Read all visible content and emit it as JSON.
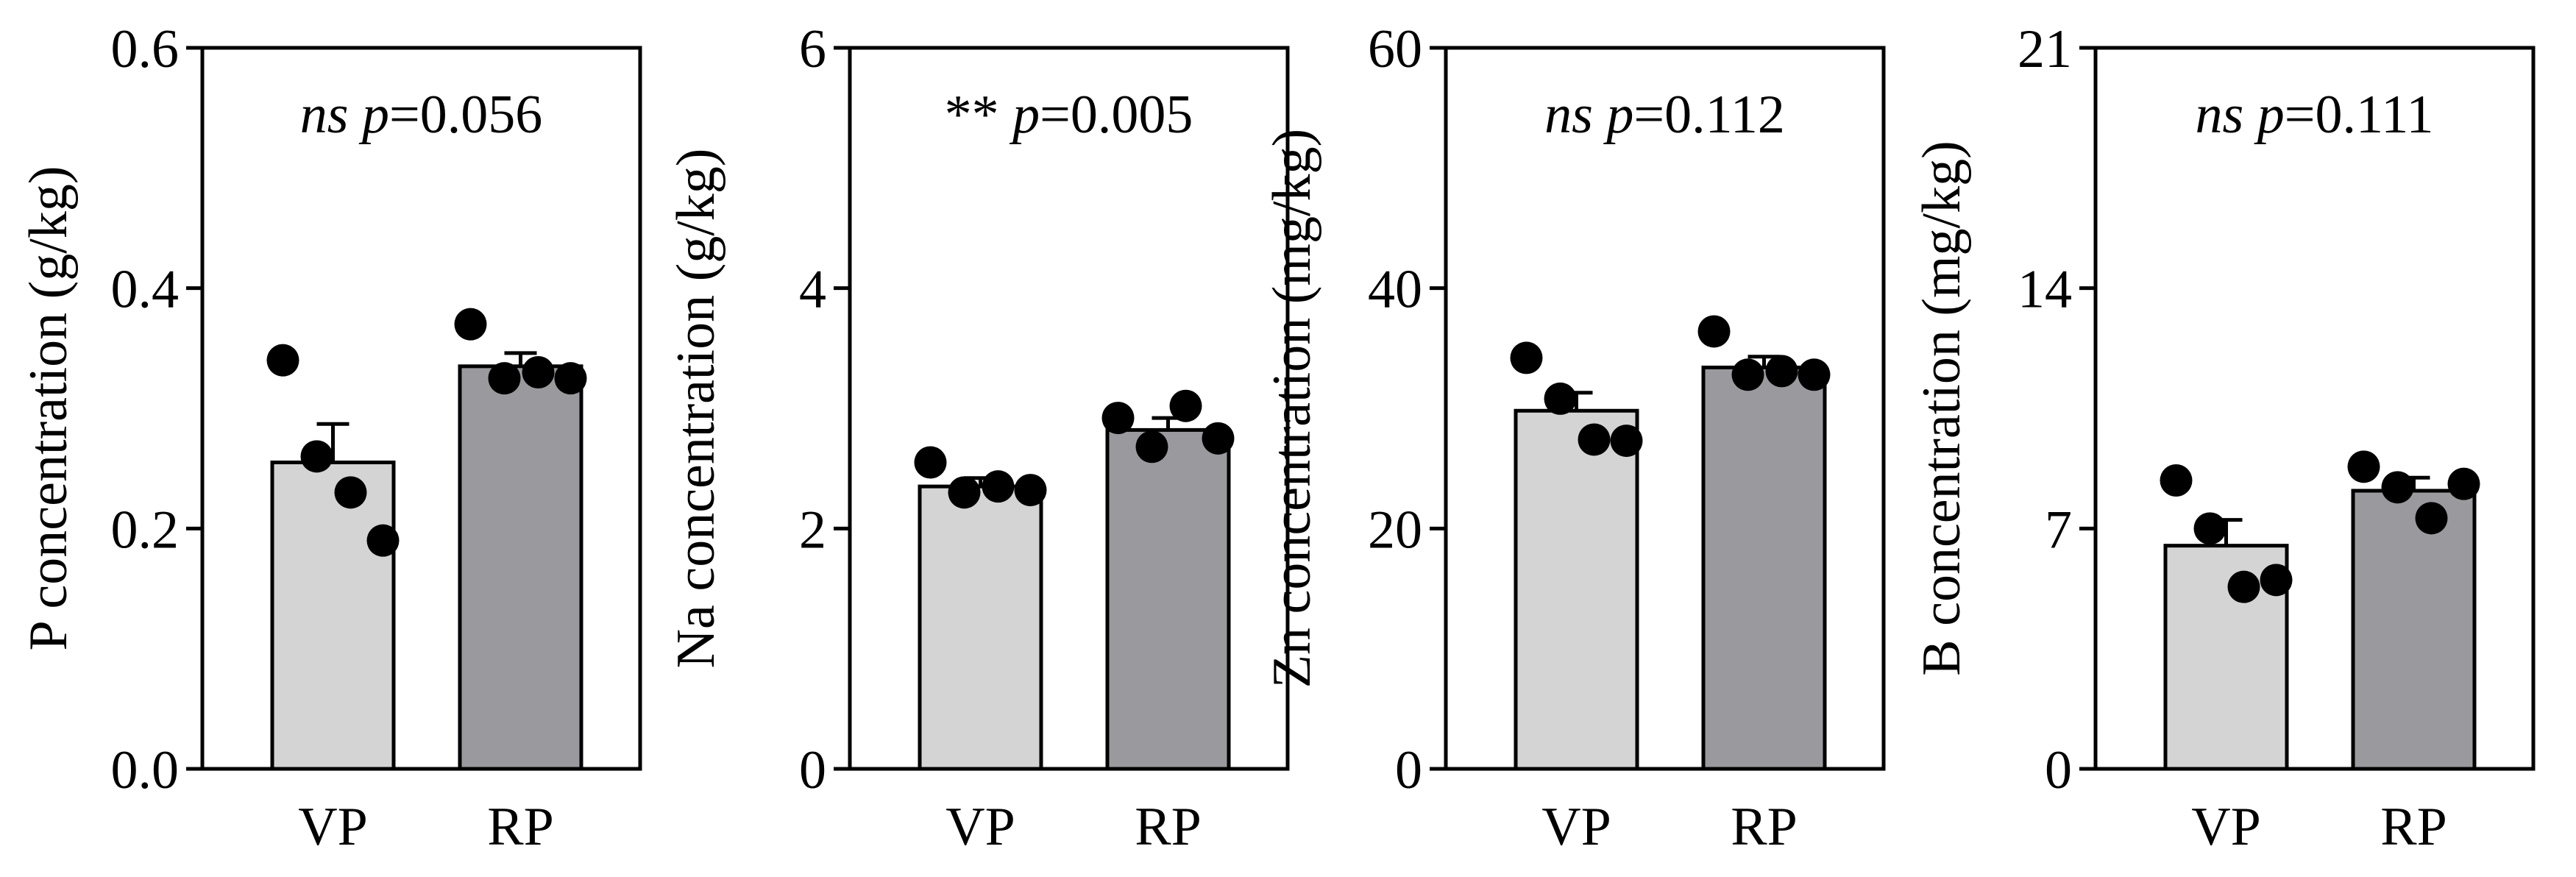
{
  "colors": {
    "vp_fill": "#d4d4d4",
    "rp_fill": "#9a9a9e",
    "axis": "#000000",
    "dot": "#000000"
  },
  "chart_data": [
    {
      "type": "bar",
      "ylabel": "P concentration (g/kg)",
      "categories": [
        "VP",
        "RP"
      ],
      "ylim": [
        0,
        0.6
      ],
      "yticks": [
        "0.0",
        "0.2",
        "0.4",
        "0.6"
      ],
      "ytick_values": [
        0,
        0.2,
        0.4,
        0.6
      ],
      "means": [
        0.255,
        0.335
      ],
      "errors": [
        0.032,
        0.011
      ],
      "points": [
        [
          0.34,
          0.26,
          0.23,
          0.19
        ],
        [
          0.37,
          0.325,
          0.33,
          0.325
        ]
      ],
      "annotation": {
        "sig": "ns",
        "p_label": "p",
        "p_value": "=0.056"
      }
    },
    {
      "type": "bar",
      "ylabel": "Na concentration (g/kg)",
      "categories": [
        "VP",
        "RP"
      ],
      "ylim": [
        0,
        6
      ],
      "yticks": [
        "0",
        "2",
        "4",
        "6"
      ],
      "ytick_values": [
        0,
        2,
        4,
        6
      ],
      "means": [
        2.35,
        2.82
      ],
      "errors": [
        0.07,
        0.1
      ],
      "points": [
        [
          2.55,
          2.3,
          2.35,
          2.32
        ],
        [
          2.92,
          2.68,
          3.02,
          2.75
        ]
      ],
      "annotation": {
        "sig": "**",
        "p_label": "p",
        "p_value": "=0.005"
      }
    },
    {
      "type": "bar",
      "ylabel": "Zn concentration (mg/kg)",
      "categories": [
        "VP",
        "RP"
      ],
      "ylim": [
        0,
        60
      ],
      "yticks": [
        "0",
        "20",
        "40",
        "60"
      ],
      "ytick_values": [
        0,
        20,
        40,
        60
      ],
      "means": [
        29.8,
        33.4
      ],
      "errors": [
        1.5,
        0.9
      ],
      "points": [
        [
          34.2,
          30.8,
          27.4,
          27.3
        ],
        [
          36.4,
          32.8,
          33.1,
          32.8
        ]
      ],
      "annotation": {
        "sig": "ns",
        "p_label": "p",
        "p_value": "=0.112"
      }
    },
    {
      "type": "bar",
      "ylabel": "B concentration (mg/kg)",
      "categories": [
        "VP",
        "RP"
      ],
      "ylim": [
        0,
        21
      ],
      "yticks": [
        "0",
        "7",
        "14",
        "21"
      ],
      "ytick_values": [
        0,
        7,
        14,
        21
      ],
      "means": [
        6.5,
        8.1
      ],
      "errors": [
        0.75,
        0.38
      ],
      "points": [
        [
          8.4,
          7.0,
          5.3,
          5.5
        ],
        [
          8.8,
          8.2,
          7.3,
          8.3
        ]
      ],
      "annotation": {
        "sig": "ns",
        "p_label": "p",
        "p_value": "=0.111"
      }
    }
  ]
}
